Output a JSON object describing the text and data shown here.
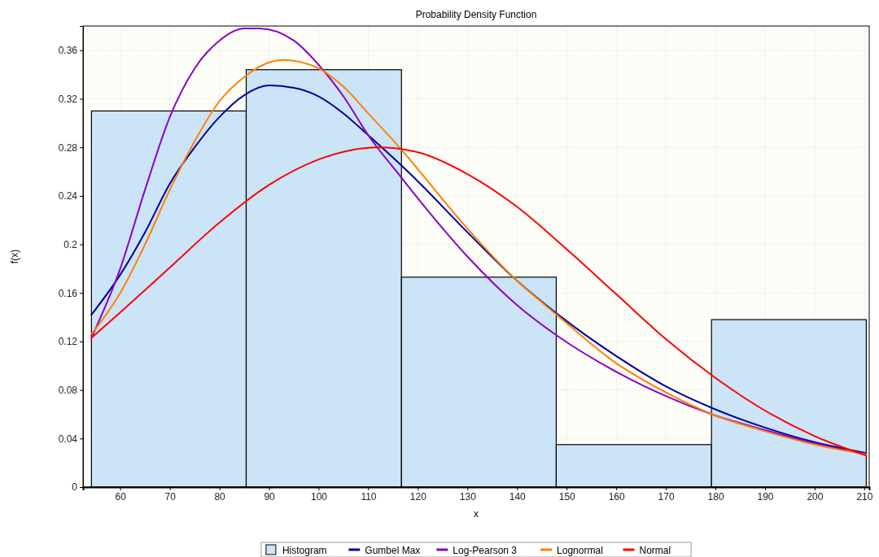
{
  "chart_data": {
    "type": "histogram",
    "title": "Probability Density Function",
    "xlabel": "x",
    "ylabel": "f(x)",
    "xlim": [
      52.5,
      211
    ],
    "xticks": [
      60,
      70,
      80,
      90,
      100,
      110,
      120,
      130,
      140,
      150,
      160,
      170,
      180,
      190,
      200,
      210
    ],
    "ylim": [
      0,
      0.38
    ],
    "yticks": [
      0,
      0.04,
      0.08,
      0.12,
      0.16,
      0.2,
      0.24,
      0.28,
      0.32,
      0.36
    ],
    "grid": true,
    "legend": "bottom",
    "series": [
      {
        "name": "Histogram",
        "color": "#cce4f7",
        "bins": [
          54.2,
          85.4,
          116.7,
          147.9,
          179.2,
          210.4
        ],
        "values": [
          0.31,
          0.344,
          0.173,
          0.035,
          0.138
        ]
      },
      {
        "name": "Gumbel Max",
        "type": "line",
        "color": "#00009c",
        "x": [
          54.2,
          60,
          65,
          70,
          75,
          80,
          85,
          90,
          95,
          100,
          105,
          110,
          116.7,
          120,
          130,
          140,
          148,
          160,
          170,
          180,
          190,
          200,
          210.4
        ],
        "values": [
          0.142,
          0.175,
          0.21,
          0.25,
          0.28,
          0.305,
          0.323,
          0.331,
          0.329,
          0.322,
          0.308,
          0.29,
          0.265,
          0.252,
          0.21,
          0.17,
          0.143,
          0.108,
          0.083,
          0.064,
          0.049,
          0.037,
          0.028
        ]
      },
      {
        "name": "Log-Pearson 3",
        "type": "line",
        "color": "#8a00c8",
        "x": [
          54.2,
          60,
          65,
          70,
          75,
          80,
          85,
          88,
          95,
          100,
          105,
          110,
          116.7,
          120,
          130,
          140,
          148,
          160,
          170,
          180,
          190,
          200,
          210.4
        ],
        "values": [
          0.123,
          0.18,
          0.245,
          0.305,
          0.345,
          0.368,
          0.378,
          0.378,
          0.368,
          0.348,
          0.322,
          0.29,
          0.255,
          0.238,
          0.19,
          0.15,
          0.125,
          0.095,
          0.075,
          0.059,
          0.047,
          0.036,
          0.027
        ]
      },
      {
        "name": "Lognormal",
        "type": "line",
        "color": "#ff8000",
        "x": [
          54.2,
          60,
          65,
          70,
          75,
          80,
          85,
          90,
          93,
          100,
          105,
          110,
          116.7,
          120,
          130,
          140,
          148,
          160,
          170,
          180,
          190,
          200,
          210.4
        ],
        "values": [
          0.126,
          0.16,
          0.2,
          0.245,
          0.285,
          0.318,
          0.338,
          0.35,
          0.352,
          0.345,
          0.33,
          0.308,
          0.278,
          0.262,
          0.213,
          0.17,
          0.142,
          0.102,
          0.078,
          0.059,
          0.046,
          0.035,
          0.027
        ]
      },
      {
        "name": "Normal",
        "type": "line",
        "color": "#ff0000",
        "x": [
          54.2,
          60,
          70,
          80,
          90,
          100,
          112,
          120,
          130,
          140,
          150,
          160,
          170,
          180,
          190,
          200,
          210.4
        ],
        "values": [
          0.123,
          0.144,
          0.181,
          0.218,
          0.249,
          0.27,
          0.28,
          0.276,
          0.258,
          0.231,
          0.196,
          0.159,
          0.122,
          0.09,
          0.063,
          0.042,
          0.026
        ]
      }
    ]
  }
}
